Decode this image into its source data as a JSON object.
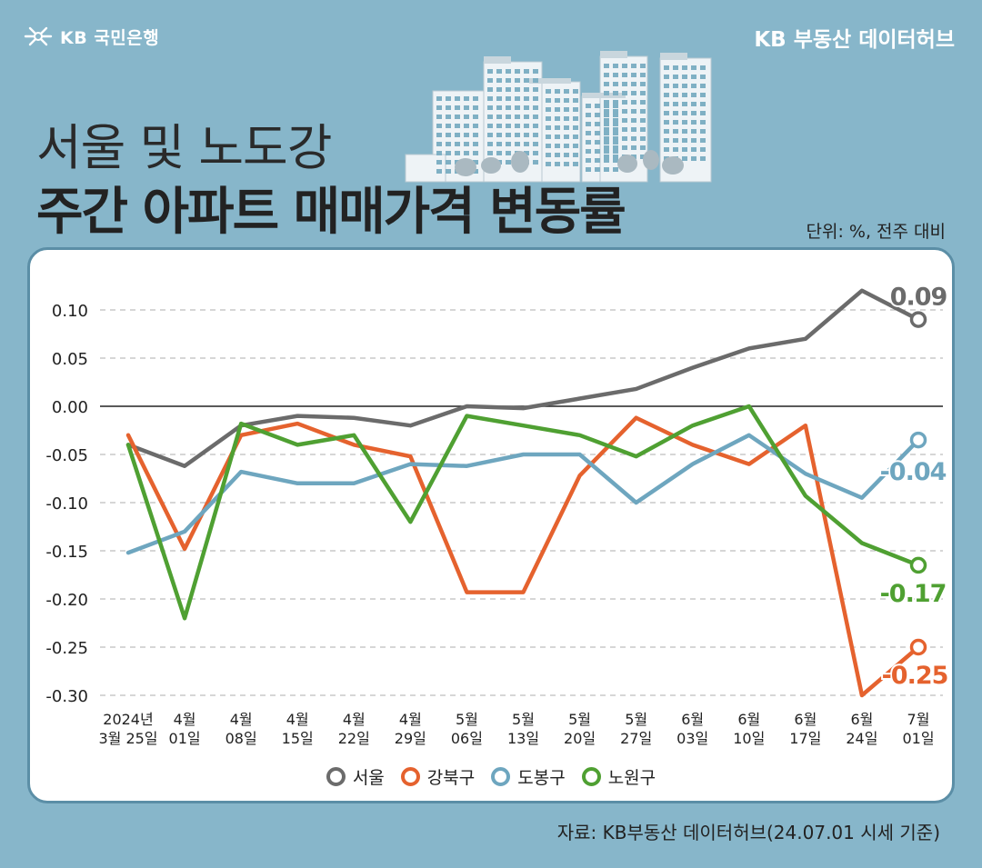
{
  "header": {
    "logo_text": "KB 국민은행",
    "brand": "KB 부동산  데이터허브",
    "title_line1": "서울 및 노도강",
    "title_line2": "주간 아파트 매매가격 변동률",
    "unit": "단위: %, 전주 대비"
  },
  "colors": {
    "background": "#87b6ca",
    "card_border": "#5b8ea6",
    "seoul": "#6b6b6b",
    "gangbuk": "#e5622e",
    "dobong": "#6ea6bf",
    "nowon": "#4fa032"
  },
  "source": "자료: KB부동산 데이터허브(24.07.01 시세 기준)",
  "chart_data": {
    "type": "line",
    "title": "",
    "xlabel": "",
    "ylabel": "",
    "ylim": [
      -0.3,
      0.1
    ],
    "yticks": [
      "0.10",
      "0.05",
      "0.00",
      "-0.05",
      "-0.10",
      "-0.15",
      "-0.20",
      "-0.25",
      "-0.30"
    ],
    "ytick_values": [
      0.1,
      0.05,
      0,
      -0.05,
      -0.1,
      -0.15,
      -0.2,
      -0.25,
      -0.3
    ],
    "grid": true,
    "legend_position": "bottom",
    "categories": [
      [
        "2024년",
        "3월 25일"
      ],
      [
        "4월",
        "01일"
      ],
      [
        "4월",
        "08일"
      ],
      [
        "4월",
        "15일"
      ],
      [
        "4월",
        "22일"
      ],
      [
        "4월",
        "29일"
      ],
      [
        "5월",
        "06일"
      ],
      [
        "5월",
        "13일"
      ],
      [
        "5월",
        "20일"
      ],
      [
        "5월",
        "27일"
      ],
      [
        "6월",
        "03일"
      ],
      [
        "6월",
        "10일"
      ],
      [
        "6월",
        "17일"
      ],
      [
        "6월",
        "24일"
      ],
      [
        "7월",
        "01일"
      ]
    ],
    "series": [
      {
        "name": "서울",
        "color": "#6b6b6b",
        "end_label": "0.09",
        "values": [
          -0.04,
          -0.062,
          -0.02,
          -0.01,
          -0.012,
          -0.02,
          0.0,
          -0.002,
          0.008,
          0.018,
          0.04,
          0.06,
          0.07,
          0.12,
          0.09
        ]
      },
      {
        "name": "강북구",
        "color": "#e5622e",
        "end_label": "-0.25",
        "values": [
          -0.03,
          -0.148,
          -0.03,
          -0.018,
          -0.04,
          -0.052,
          -0.193,
          -0.193,
          -0.072,
          -0.012,
          -0.04,
          -0.06,
          -0.02,
          -0.3,
          -0.25
        ]
      },
      {
        "name": "도봉구",
        "color": "#6ea6bf",
        "end_label": "-0.04",
        "values": [
          -0.152,
          -0.13,
          -0.068,
          -0.08,
          -0.08,
          -0.06,
          -0.062,
          -0.05,
          -0.05,
          -0.1,
          -0.06,
          -0.03,
          -0.07,
          -0.095,
          -0.035
        ]
      },
      {
        "name": "노원구",
        "color": "#4fa032",
        "end_label": "-0.17",
        "values": [
          -0.04,
          -0.22,
          -0.018,
          -0.04,
          -0.03,
          -0.12,
          -0.01,
          -0.02,
          -0.03,
          -0.052,
          -0.02,
          0.0,
          -0.093,
          -0.142,
          -0.165
        ]
      }
    ]
  }
}
